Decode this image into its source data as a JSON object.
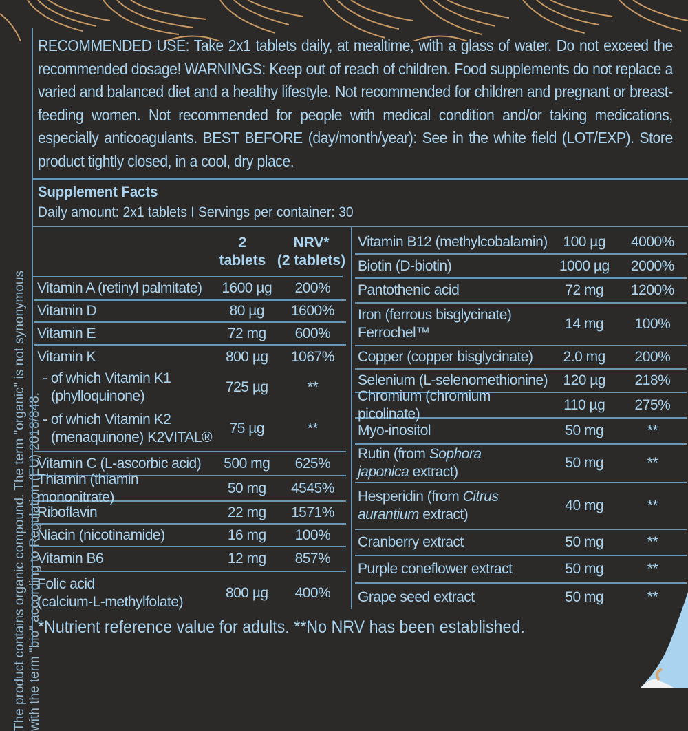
{
  "side_note": {
    "line1": "The product contains organic compound. The term \"organic\" is not synonymous",
    "line2": "with the term \"bio\" according to Regulation (EU) 2018/848."
  },
  "recommended_use": "RECOMMENDED USE: Take 2x1 tablets daily, at mealtime, with a glass of water. Do not exceed the recommended dosage! WARNINGS: Keep out of reach of children. Food supplements do not replace a varied and balanced diet and a healthy lifestyle. Not recommended for children and pregnant or breast-feeding women. Not recommended for people with medical condition and/or taking medications, especially anticoagulants. BEST BEFORE (day/month/year): See in the white field (LOT/EXP). Store product tightly closed, in a cool, dry place.",
  "supplement_facts": {
    "title": "Supplement Facts",
    "daily_amount": "Daily amount: 2x1 tablets I Servings per container: 30",
    "header_amount_1": "2",
    "header_amount_2": "tablets",
    "header_nrv_1": "NRV*",
    "header_nrv_2": "(2 tablets)",
    "left_rows": [
      {
        "name": "Vitamin A (retinyl palmitate)",
        "amount": "1600 µg",
        "nrv": "200%"
      },
      {
        "name": "Vitamin D",
        "amount": "80 µg",
        "nrv": "1600%"
      },
      {
        "name": "Vitamin E",
        "amount": "72 mg",
        "nrv": "600%"
      },
      {
        "name": "Vitamin K",
        "amount": "800 µg",
        "nrv": "1067%"
      },
      {
        "name": "- of which Vitamin K1",
        "name2": "(phylloquinone)",
        "amount": "725 µg",
        "nrv": "**"
      },
      {
        "name": "- of which Vitamin K2",
        "name2": "(menaquinone) K2VITAL®",
        "amount": "75 µg",
        "nrv": "**"
      },
      {
        "name": "Vitamin C (L-ascorbic acid)",
        "amount": "500 mg",
        "nrv": "625%"
      },
      {
        "name": "Thiamin (thiamin mononitrate)",
        "amount": "50 mg",
        "nrv": "4545%"
      },
      {
        "name": "Riboflavin",
        "amount": "22 mg",
        "nrv": "1571%"
      },
      {
        "name": "Niacin (nicotinamide)",
        "amount": "16 mg",
        "nrv": "100%"
      },
      {
        "name": "Vitamin B6",
        "amount": "12 mg",
        "nrv": "857%"
      },
      {
        "name": "Folic acid",
        "name2": "(calcium-L-methylfolate)",
        "amount": "800 µg",
        "nrv": "400%"
      }
    ],
    "right_rows": [
      {
        "name": "Vitamin B12 (methylcobalamin)",
        "amount": "100 µg",
        "nrv": "4000%"
      },
      {
        "name": "Biotin (D-biotin)",
        "amount": "1000 µg",
        "nrv": "2000%"
      },
      {
        "name": "Pantothenic acid",
        "amount": "72 mg",
        "nrv": "1200%"
      },
      {
        "name": "Iron (ferrous bisglycinate)",
        "name2": "Ferrochel™",
        "amount": "14 mg",
        "nrv": "100%"
      },
      {
        "name": "Copper (copper bisglycinate)",
        "amount": "2.0 mg",
        "nrv": "200%"
      },
      {
        "name": "Selenium (L-selenomethionine)",
        "amount": "120 µg",
        "nrv": "218%"
      },
      {
        "name": "Chromium (chromium picolinate)",
        "amount": "110 µg",
        "nrv": "275%"
      },
      {
        "name": "Myo-inositol",
        "amount": "50 mg",
        "nrv": "**"
      },
      {
        "name": "Rutin (from ",
        "italic": "Sophora",
        "name2_italic": "japonica",
        "name2": " extract)",
        "amount": "50 mg",
        "nrv": "**"
      },
      {
        "name": "Hesperidin (from ",
        "italic": "Citrus",
        "name2_italic": "aurantium",
        "name2": " extract)",
        "amount": "40 mg",
        "nrv": "**"
      },
      {
        "name": "Cranberry extract",
        "amount": "50 mg",
        "nrv": "**"
      },
      {
        "name": "Purple coneflower extract",
        "amount": "50 mg",
        "nrv": "**"
      },
      {
        "name": "Grape seed extract",
        "amount": "50 mg",
        "nrv": "**"
      }
    ]
  },
  "footnote": "*Nutrient reference value for adults. **No NRV has been established.",
  "colors": {
    "background": "#2b2a28",
    "text": "#a9d3ee",
    "rule": "#6a97b5",
    "decor": "#d9a56a"
  }
}
